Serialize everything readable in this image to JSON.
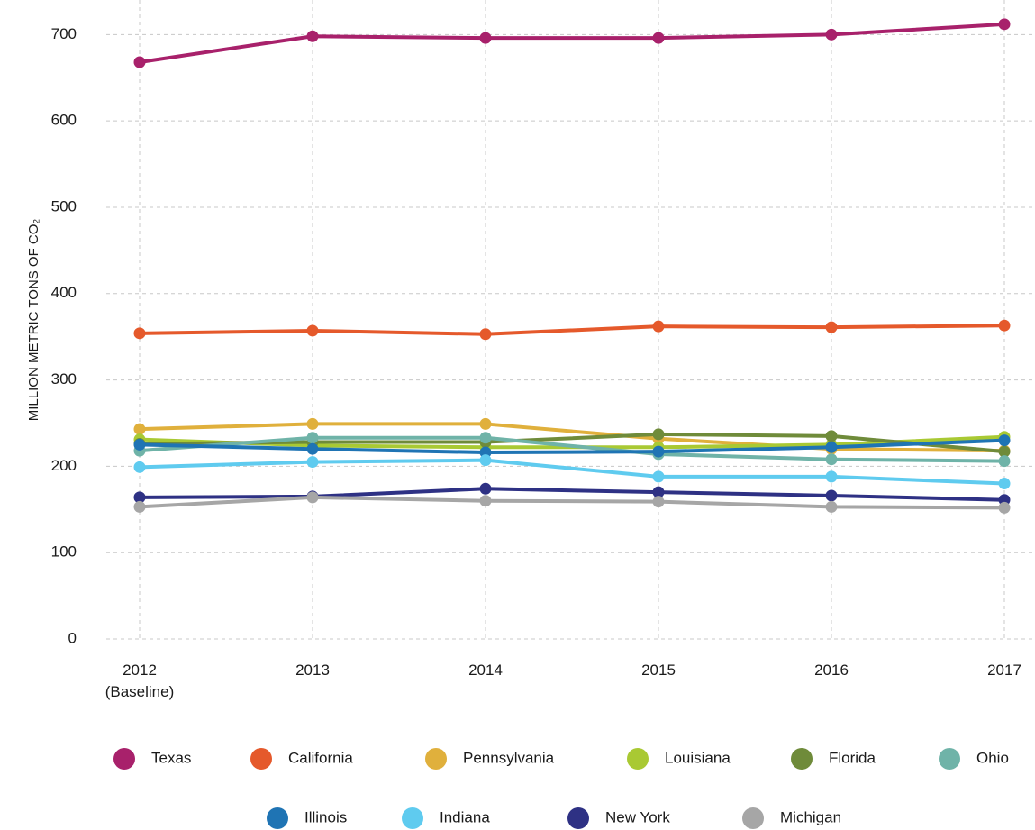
{
  "chart_data": {
    "type": "line",
    "y_label": "MILLION METRIC TONS OF CO₂",
    "categories": [
      "2012\n(Baseline)",
      "2013",
      "2014",
      "2015",
      "2016",
      "2017"
    ],
    "series": [
      {
        "name": "Texas",
        "color": "#a8216b",
        "values": [
          668,
          698,
          696,
          696,
          700,
          712
        ]
      },
      {
        "name": "California",
        "color": "#e5592b",
        "values": [
          354,
          357,
          353,
          362,
          361,
          363
        ]
      },
      {
        "name": "Pennsylvania",
        "color": "#e0b03c",
        "values": [
          243,
          249,
          249,
          232,
          220,
          218
        ]
      },
      {
        "name": "Louisiana",
        "color": "#a9c933",
        "values": [
          231,
          224,
          222,
          222,
          225,
          234
        ]
      },
      {
        "name": "Florida",
        "color": "#6f8b3a",
        "values": [
          226,
          228,
          228,
          237,
          235,
          217
        ]
      },
      {
        "name": "Ohio",
        "color": "#6fb3a8",
        "values": [
          218,
          233,
          233,
          214,
          208,
          206
        ]
      },
      {
        "name": "Illinois",
        "color": "#1f74b4",
        "values": [
          225,
          220,
          216,
          217,
          222,
          230
        ]
      },
      {
        "name": "Indiana",
        "color": "#5fcbef",
        "values": [
          199,
          205,
          207,
          188,
          188,
          180
        ]
      },
      {
        "name": "New York",
        "color": "#2e3184",
        "values": [
          164,
          165,
          174,
          170,
          166,
          161
        ]
      },
      {
        "name": "Michigan",
        "color": "#a6a6a6",
        "values": [
          153,
          164,
          160,
          159,
          153,
          152
        ]
      }
    ],
    "ylim": [
      0,
      740
    ],
    "yticks": [
      0,
      100,
      200,
      300,
      400,
      500,
      600,
      700
    ],
    "grid": true
  }
}
